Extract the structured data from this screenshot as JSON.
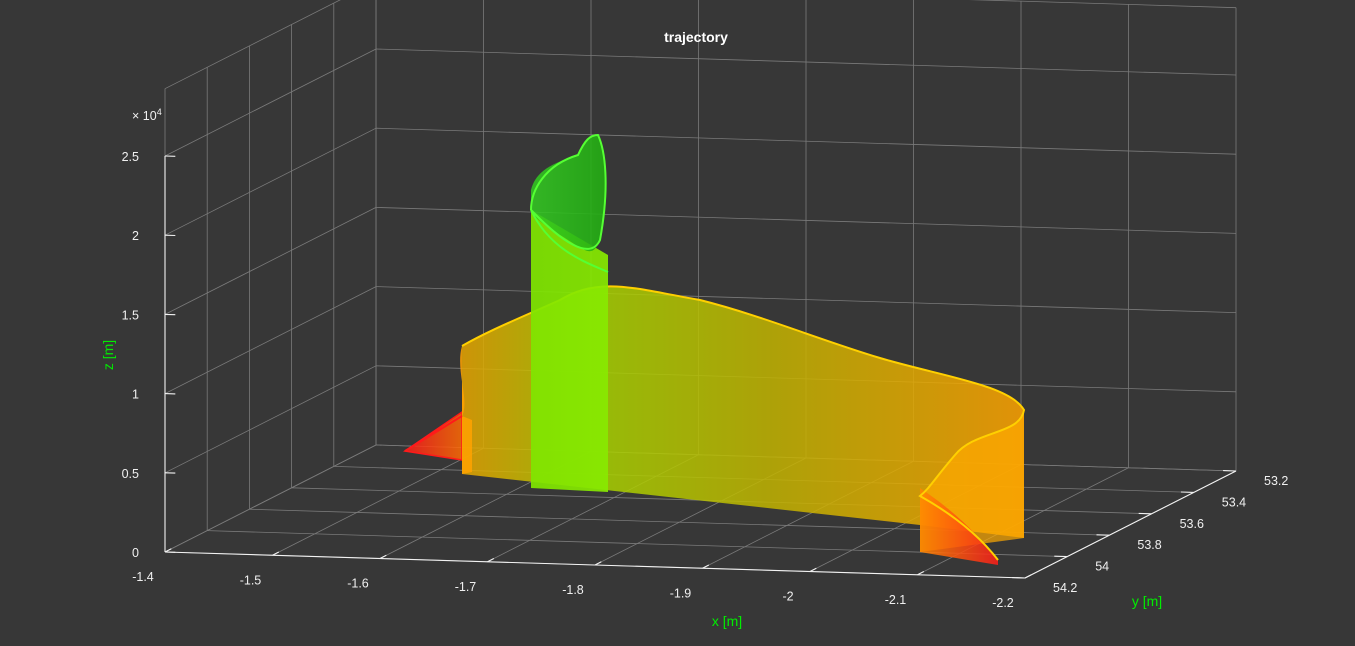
{
  "chart_data": {
    "type": "3d-ribbon",
    "title": "trajectory",
    "xlabel": "x [m]",
    "ylabel": "y [m]",
    "zlabel": "z [m]",
    "z_exponent_base": "× 10",
    "z_exponent_power": "4",
    "xlim": [
      -2.2,
      -1.4
    ],
    "ylim": [
      53.2,
      54.2
    ],
    "zlim": [
      0,
      25000
    ],
    "x_ticks": [
      "-1.4",
      "-1.5",
      "-1.6",
      "-1.7",
      "-1.8",
      "-1.9",
      "-2",
      "-2.1",
      "-2.2"
    ],
    "y_ticks": [
      "53.2",
      "53.4",
      "53.6",
      "53.8",
      "54",
      "54.2"
    ],
    "z_ticks": [
      "0",
      "0.5",
      "1",
      "1.5",
      "2",
      "2.5"
    ],
    "grid": true,
    "colors": {
      "low": "#ff1a1a",
      "mid": "#ffa500",
      "high": "#00dd00"
    }
  }
}
